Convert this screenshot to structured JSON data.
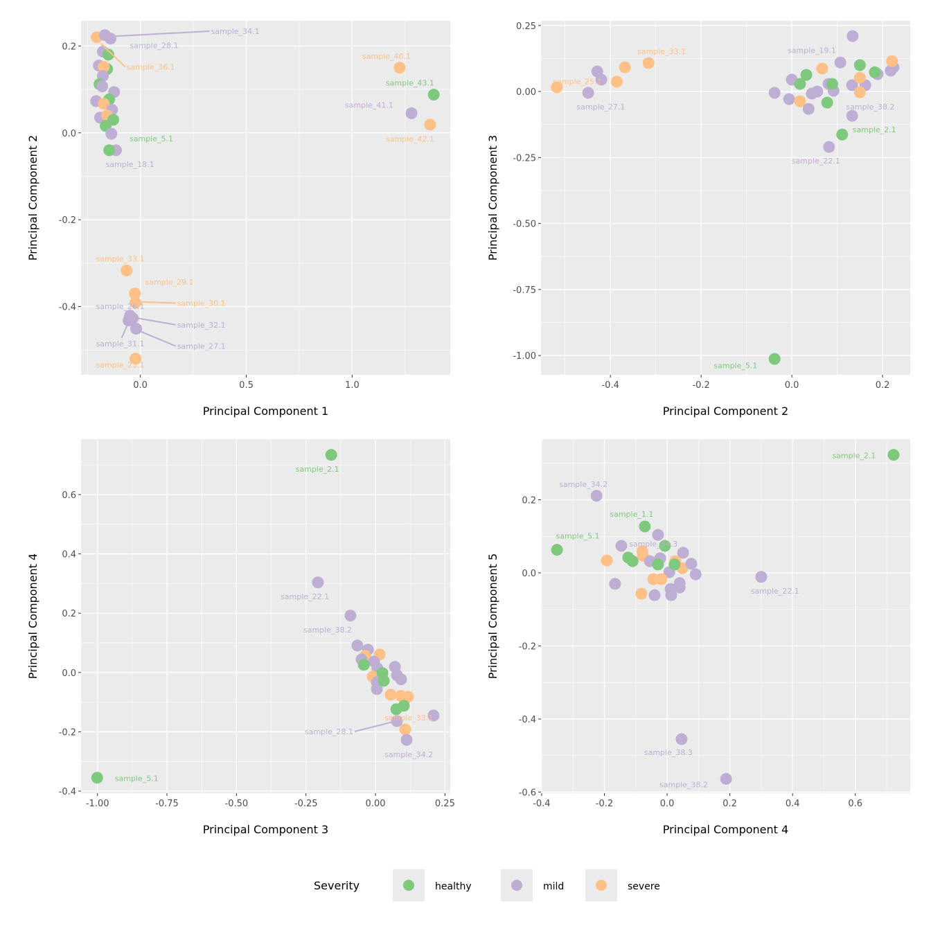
{
  "colors": {
    "healthy": "#7fc97f",
    "mild": "#beaed4",
    "severe": "#fdc086",
    "panel_bg": "#ebebeb",
    "grid": "#ffffff"
  },
  "legend": {
    "title": "Severity",
    "items": [
      {
        "key": "healthy",
        "label": "healthy"
      },
      {
        "key": "mild",
        "label": "mild"
      },
      {
        "key": "severe",
        "label": "severe"
      }
    ],
    "position": "bottom"
  },
  "chart_data": [
    {
      "type": "scatter",
      "xlabel": "Principal Component 1",
      "ylabel": "Principal Component 2",
      "xlim": [
        -0.28,
        1.463
      ],
      "ylim": [
        -0.557,
        0.258
      ],
      "xticks": [
        0.0,
        0.5,
        1.0
      ],
      "xtick_labels": [
        "0.0",
        "0.5",
        "1.0"
      ],
      "yticks": [
        -0.4,
        -0.2,
        0.0,
        0.2
      ],
      "ytick_labels": [
        "-0.4",
        "-0.2",
        "0.0",
        "0.2"
      ],
      "points": [
        [
          -0.206,
          0.22,
          "severe"
        ],
        [
          -0.167,
          0.225,
          "mild"
        ],
        [
          -0.141,
          0.217,
          "mild"
        ],
        [
          -0.177,
          0.187,
          "mild"
        ],
        [
          -0.151,
          0.18,
          "healthy"
        ],
        [
          -0.196,
          0.155,
          "mild"
        ],
        [
          -0.157,
          0.147,
          "healthy"
        ],
        [
          -0.173,
          0.152,
          "severe"
        ],
        [
          -0.177,
          0.131,
          "mild"
        ],
        [
          -0.193,
          0.112,
          "healthy"
        ],
        [
          -0.18,
          0.107,
          "mild"
        ],
        [
          -0.124,
          0.094,
          "mild"
        ],
        [
          -0.209,
          0.073,
          "mild"
        ],
        [
          -0.147,
          0.077,
          "healthy"
        ],
        [
          -0.173,
          0.067,
          "severe"
        ],
        [
          -0.134,
          0.053,
          "mild"
        ],
        [
          -0.19,
          0.035,
          "mild"
        ],
        [
          -0.157,
          0.04,
          "severe"
        ],
        [
          -0.128,
          0.03,
          "healthy"
        ],
        [
          -0.164,
          0.016,
          "healthy"
        ],
        [
          -0.137,
          -0.002,
          "mild"
        ],
        [
          -0.115,
          -0.04,
          "mild"
        ],
        [
          -0.147,
          -0.04,
          "healthy"
        ],
        [
          1.224,
          0.15,
          "severe"
        ],
        [
          1.385,
          0.088,
          "healthy"
        ],
        [
          1.28,
          0.045,
          "mild"
        ],
        [
          1.368,
          0.019,
          "severe"
        ],
        [
          -0.065,
          -0.317,
          "severe"
        ],
        [
          -0.026,
          -0.37,
          "severe"
        ],
        [
          -0.023,
          -0.391,
          "severe"
        ],
        [
          -0.049,
          -0.421,
          "mild"
        ],
        [
          -0.036,
          -0.427,
          "mild"
        ],
        [
          -0.056,
          -0.432,
          "mild"
        ],
        [
          -0.02,
          -0.451,
          "mild"
        ],
        [
          -0.023,
          -0.52,
          "severe"
        ]
      ],
      "labels": [
        {
          "text": "sample_34.1",
          "x": 0.448,
          "y": 0.234,
          "sev": "mild",
          "from": [
            -0.141,
            0.222
          ]
        },
        {
          "text": "sample_28.1",
          "x": 0.065,
          "y": 0.201,
          "sev": "mild"
        },
        {
          "text": "sample_36.1",
          "x": 0.049,
          "y": 0.152,
          "sev": "severe",
          "from": [
            -0.185,
            0.205
          ]
        },
        {
          "text": "sample_40.1",
          "x": 1.162,
          "y": 0.177,
          "sev": "severe"
        },
        {
          "text": "sample_43.1",
          "x": 1.273,
          "y": 0.115,
          "sev": "healthy"
        },
        {
          "text": "sample_41.1",
          "x": 1.08,
          "y": 0.064,
          "sev": "mild"
        },
        {
          "text": "sample_42.1",
          "x": 1.273,
          "y": -0.014,
          "sev": "severe"
        },
        {
          "text": "sample_5.1",
          "x": 0.052,
          "y": -0.013,
          "sev": "healthy"
        },
        {
          "text": "sample_18.1",
          "x": -0.049,
          "y": -0.072,
          "sev": "mild"
        },
        {
          "text": "sample_33.1",
          "x": -0.095,
          "y": -0.29,
          "sev": "severe"
        },
        {
          "text": "sample_29.1",
          "x": 0.137,
          "y": -0.343,
          "sev": "severe"
        },
        {
          "text": "sample_30.1",
          "x": 0.288,
          "y": -0.392,
          "sev": "severe",
          "from": [
            -0.013,
            -0.389
          ]
        },
        {
          "text": "sample_26.1",
          "x": -0.095,
          "y": -0.399,
          "sev": "mild"
        },
        {
          "text": "sample_32.1",
          "x": 0.288,
          "y": -0.442,
          "sev": "mild",
          "from": [
            -0.01,
            -0.427
          ]
        },
        {
          "text": "sample_31.1",
          "x": -0.095,
          "y": -0.485,
          "sev": "mild",
          "from": [
            -0.056,
            -0.436
          ],
          "to_top": true
        },
        {
          "text": "sample_27.1",
          "x": 0.288,
          "y": -0.491,
          "sev": "mild",
          "from": [
            -0.01,
            -0.455
          ]
        },
        {
          "text": "sample_23.1",
          "x": -0.095,
          "y": -0.534,
          "sev": "severe"
        }
      ]
    },
    {
      "type": "scatter",
      "xlabel": "Principal Component 2",
      "ylabel": "Principal Component 3",
      "xlim": [
        -0.553,
        0.261
      ],
      "ylim": [
        -1.073,
        0.268
      ],
      "xticks": [
        -0.4,
        -0.2,
        0.0,
        0.2
      ],
      "xtick_labels": [
        "-0.4",
        "-0.2",
        "0.0",
        "0.2"
      ],
      "yticks": [
        -1.0,
        -0.75,
        -0.5,
        -0.25,
        0.0,
        0.25
      ],
      "ytick_labels": [
        "-1.00",
        "-0.75",
        "-0.50",
        "-0.25",
        "0.00",
        "0.25"
      ],
      "points": [
        [
          -0.518,
          0.016,
          "severe"
        ],
        [
          -0.449,
          -0.005,
          "mild"
        ],
        [
          -0.429,
          0.076,
          "mild"
        ],
        [
          -0.42,
          0.045,
          "mild"
        ],
        [
          -0.386,
          0.037,
          "severe"
        ],
        [
          -0.368,
          0.092,
          "severe"
        ],
        [
          -0.316,
          0.108,
          "severe"
        ],
        [
          -0.038,
          -0.005,
          "mild"
        ],
        [
          0.0,
          0.045,
          "mild"
        ],
        [
          -0.006,
          -0.029,
          "mild"
        ],
        [
          0.018,
          -0.037,
          "severe"
        ],
        [
          0.018,
          0.029,
          "healthy"
        ],
        [
          0.032,
          0.063,
          "healthy"
        ],
        [
          0.037,
          -0.066,
          "mild"
        ],
        [
          0.044,
          -0.008,
          "mild"
        ],
        [
          0.056,
          0.0,
          "mild"
        ],
        [
          0.067,
          0.087,
          "severe"
        ],
        [
          0.081,
          0.029,
          "mild"
        ],
        [
          0.092,
          0.003,
          "mild"
        ],
        [
          0.089,
          0.029,
          "healthy"
        ],
        [
          0.078,
          -0.042,
          "healthy"
        ],
        [
          0.107,
          0.11,
          "mild"
        ],
        [
          0.134,
          0.21,
          "mild"
        ],
        [
          0.133,
          0.024,
          "mild"
        ],
        [
          0.162,
          0.024,
          "mild"
        ],
        [
          0.15,
          0.1,
          "healthy"
        ],
        [
          0.15,
          0.052,
          "severe"
        ],
        [
          0.15,
          -0.003,
          "severe"
        ],
        [
          0.189,
          0.066,
          "mild"
        ],
        [
          0.183,
          0.073,
          "healthy"
        ],
        [
          0.218,
          0.079,
          "mild"
        ],
        [
          0.224,
          0.092,
          "mild"
        ],
        [
          0.221,
          0.115,
          "severe"
        ],
        [
          0.133,
          -0.092,
          "mild"
        ],
        [
          0.111,
          -0.163,
          "healthy"
        ],
        [
          0.082,
          -0.21,
          "mild"
        ],
        [
          -0.038,
          -1.013,
          "healthy"
        ]
      ],
      "labels": [
        {
          "text": "sample_33.1",
          "x": -0.287,
          "y": 0.152,
          "sev": "severe"
        },
        {
          "text": "sample_25.1",
          "x": -0.473,
          "y": 0.039,
          "sev": "severe"
        },
        {
          "text": "sample_27.1",
          "x": -0.421,
          "y": -0.058,
          "sev": "mild"
        },
        {
          "text": "sample_19.1",
          "x": 0.044,
          "y": 0.157,
          "sev": "mild"
        },
        {
          "text": "sample_38.2",
          "x": 0.173,
          "y": -0.058,
          "sev": "mild"
        },
        {
          "text": "sample_2.1",
          "x": 0.182,
          "y": -0.144,
          "sev": "healthy"
        },
        {
          "text": "sample_22.1",
          "x": 0.053,
          "y": -0.262,
          "sev": "mild"
        },
        {
          "text": "sample_5.1",
          "x": -0.124,
          "y": -1.037,
          "sev": "healthy"
        }
      ]
    },
    {
      "type": "scatter",
      "xlabel": "Principal Component 3",
      "ylabel": "Principal Component 4",
      "xlim": [
        -1.059,
        0.269
      ],
      "ylim": [
        -0.407,
        0.787
      ],
      "xticks": [
        -1.0,
        -0.75,
        -0.5,
        -0.25,
        0.0,
        0.25
      ],
      "xtick_labels": [
        "-1.00",
        "-0.75",
        "-0.50",
        "-0.25",
        "0.00",
        "0.25"
      ],
      "yticks": [
        -0.4,
        -0.2,
        0.0,
        0.2,
        0.4,
        0.6
      ],
      "ytick_labels": [
        "-0.4",
        "-0.2",
        "0.0",
        "0.2",
        "0.4",
        "0.6"
      ],
      "points": [
        [
          -0.159,
          0.734,
          "healthy"
        ],
        [
          -0.207,
          0.304,
          "mild"
        ],
        [
          -0.09,
          0.192,
          "mild"
        ],
        [
          -0.065,
          0.091,
          "mild"
        ],
        [
          -0.027,
          0.077,
          "mild"
        ],
        [
          -0.037,
          0.056,
          "severe"
        ],
        [
          -0.05,
          0.044,
          "mild"
        ],
        [
          0.015,
          0.061,
          "severe"
        ],
        [
          -0.005,
          0.037,
          "mild"
        ],
        [
          0.007,
          0.014,
          "mild"
        ],
        [
          -0.042,
          0.026,
          "healthy"
        ],
        [
          -0.01,
          -0.014,
          "severe"
        ],
        [
          0.005,
          -0.056,
          "mild"
        ],
        [
          0.005,
          -0.033,
          "mild"
        ],
        [
          0.07,
          0.019,
          "mild"
        ],
        [
          0.077,
          -0.009,
          "mild"
        ],
        [
          0.092,
          -0.023,
          "mild"
        ],
        [
          0.025,
          -0.002,
          "healthy"
        ],
        [
          0.03,
          -0.028,
          "healthy"
        ],
        [
          0.055,
          -0.075,
          "severe"
        ],
        [
          0.092,
          -0.079,
          "severe"
        ],
        [
          0.117,
          -0.082,
          "severe"
        ],
        [
          0.075,
          -0.124,
          "healthy"
        ],
        [
          0.102,
          -0.112,
          "healthy"
        ],
        [
          0.077,
          -0.164,
          "mild"
        ],
        [
          0.107,
          -0.192,
          "severe"
        ],
        [
          0.112,
          -0.227,
          "mild"
        ],
        [
          0.209,
          -0.145,
          "mild"
        ],
        [
          -1.001,
          -0.355,
          "healthy"
        ]
      ],
      "labels": [
        {
          "text": "sample_2.1",
          "x": -0.209,
          "y": 0.687,
          "sev": "healthy"
        },
        {
          "text": "sample_22.1",
          "x": -0.254,
          "y": 0.257,
          "sev": "mild"
        },
        {
          "text": "sample_38.2",
          "x": -0.172,
          "y": 0.145,
          "sev": "mild"
        },
        {
          "text": "sample_33.1",
          "x": 0.12,
          "y": -0.152,
          "sev": "severe"
        },
        {
          "text": "sample_28.1",
          "x": -0.167,
          "y": -0.199,
          "sev": "mild",
          "from": [
            0.06,
            -0.167
          ],
          "to_right": true
        },
        {
          "text": "sample_34.2",
          "x": 0.12,
          "y": -0.276,
          "sev": "mild"
        },
        {
          "text": "sample_5.1",
          "x": -0.859,
          "y": -0.357,
          "sev": "healthy"
        }
      ]
    },
    {
      "type": "scatter",
      "xlabel": "Principal Component 4",
      "ylabel": "Principal Component 5",
      "xlim": [
        -0.402,
        0.775
      ],
      "ylim": [
        -0.603,
        0.366
      ],
      "xticks": [
        -0.4,
        -0.2,
        0.0,
        0.2,
        0.4,
        0.6
      ],
      "xtick_labels": [
        "-0.4",
        "-0.2",
        "0.0",
        "0.2",
        "0.4",
        "0.6"
      ],
      "yticks": [
        -0.6,
        -0.4,
        -0.2,
        0.0,
        0.2
      ],
      "ytick_labels": [
        "-0.6",
        "-0.4",
        "-0.2",
        "0.0",
        "0.2"
      ],
      "points": [
        [
          0.722,
          0.323,
          "healthy"
        ],
        [
          -0.225,
          0.211,
          "mild"
        ],
        [
          -0.071,
          0.127,
          "healthy"
        ],
        [
          -0.029,
          0.104,
          "mild"
        ],
        [
          -0.351,
          0.063,
          "healthy"
        ],
        [
          -0.146,
          0.074,
          "mild"
        ],
        [
          -0.007,
          0.074,
          "healthy"
        ],
        [
          -0.079,
          0.059,
          "severe"
        ],
        [
          -0.077,
          0.047,
          "severe"
        ],
        [
          0.051,
          0.055,
          "mild"
        ],
        [
          -0.192,
          0.034,
          "severe"
        ],
        [
          -0.124,
          0.042,
          "healthy"
        ],
        [
          -0.11,
          0.032,
          "healthy"
        ],
        [
          -0.055,
          0.032,
          "mild"
        ],
        [
          -0.022,
          0.04,
          "mild"
        ],
        [
          0.026,
          0.032,
          "severe"
        ],
        [
          0.049,
          0.013,
          "severe"
        ],
        [
          0.077,
          0.025,
          "mild"
        ],
        [
          0.091,
          -0.004,
          "mild"
        ],
        [
          0.007,
          0.002,
          "mild"
        ],
        [
          -0.029,
          0.023,
          "healthy"
        ],
        [
          0.024,
          0.023,
          "healthy"
        ],
        [
          -0.044,
          -0.017,
          "severe"
        ],
        [
          -0.018,
          -0.017,
          "severe"
        ],
        [
          0.04,
          -0.028,
          "mild"
        ],
        [
          0.011,
          -0.044,
          "mild"
        ],
        [
          0.04,
          -0.04,
          "mild"
        ],
        [
          -0.166,
          -0.03,
          "mild"
        ],
        [
          -0.082,
          -0.057,
          "severe"
        ],
        [
          -0.04,
          -0.061,
          "mild"
        ],
        [
          0.013,
          -0.061,
          "mild"
        ],
        [
          0.3,
          -0.011,
          "mild"
        ],
        [
          0.046,
          -0.455,
          "mild"
        ],
        [
          0.188,
          -0.564,
          "mild"
        ]
      ],
      "labels": [
        {
          "text": "sample_2.1",
          "x": 0.596,
          "y": 0.321,
          "sev": "healthy"
        },
        {
          "text": "sample_34.2",
          "x": -0.267,
          "y": 0.243,
          "sev": "mild"
        },
        {
          "text": "sample_1.1",
          "x": -0.113,
          "y": 0.161,
          "sev": "healthy"
        },
        {
          "text": "sample_5.1",
          "x": -0.285,
          "y": 0.101,
          "sev": "healthy"
        },
        {
          "text": "sample_34.3",
          "x": -0.044,
          "y": 0.08,
          "sev": "mild"
        },
        {
          "text": "sample_22.1",
          "x": 0.344,
          "y": -0.049,
          "sev": "mild"
        },
        {
          "text": "sample_38.3",
          "x": 0.004,
          "y": -0.491,
          "sev": "mild"
        },
        {
          "text": "sample_38.2",
          "x": 0.053,
          "y": -0.579,
          "sev": "mild"
        }
      ]
    }
  ]
}
